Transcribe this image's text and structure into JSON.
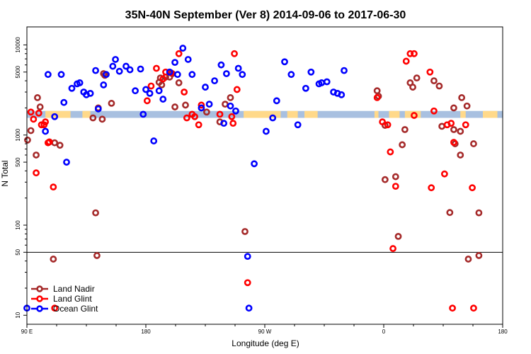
{
  "chart_data": {
    "type": "scatter",
    "title": "35N-40N September (Ver 8)   2014-09-06 to 2017-06-30",
    "xlabel": "Longitude (deg E)",
    "ylabel": "N Total",
    "xlim": [
      90,
      450
    ],
    "ylog": true,
    "ylim_log10": [
      0.9,
      4.2
    ],
    "x_ticks": [
      {
        "value": 90,
        "label": "90 E"
      },
      {
        "value": 180,
        "label": "180"
      },
      {
        "value": 270,
        "label": "90 W"
      },
      {
        "value": 360,
        "label": "0"
      },
      {
        "value": 450,
        "label": "180"
      }
    ],
    "x_minor_ticks": [
      112.5,
      135,
      157.5,
      202.5,
      225,
      247.5,
      292.5,
      315,
      337.5,
      382.5,
      405,
      427.5
    ],
    "y_ticks": [
      {
        "value": 10,
        "label": "10"
      },
      {
        "value": 50,
        "label": "50"
      },
      {
        "value": 100,
        "label": "100"
      },
      {
        "value": 500,
        "label": "500"
      },
      {
        "value": 1000,
        "label": "1000"
      },
      {
        "value": 5000,
        "label": "5000"
      },
      {
        "value": 10000,
        "label": "10000"
      }
    ],
    "hline": 50,
    "land_band": {
      "y_low": 1550,
      "y_high": 1850,
      "ocean_color": "#A8C0E0",
      "land_color": "#FFD98A",
      "land_ranges": [
        [
          104,
          123
        ],
        [
          132,
          138
        ],
        [
          254,
          282
        ],
        [
          287,
          295
        ],
        [
          300,
          310
        ],
        [
          353,
          356
        ],
        [
          364,
          372
        ],
        [
          376,
          388
        ],
        [
          418,
          422
        ],
        [
          435,
          446
        ]
      ]
    },
    "legend_position": "bottom-left",
    "series": [
      {
        "name": "Land Nadir",
        "color": "#A52A2A",
        "points": [
          [
            90.5,
            880
          ],
          [
            93,
            1120
          ],
          [
            97,
            600
          ],
          [
            98,
            2600
          ],
          [
            100,
            2050
          ],
          [
            110,
            42
          ],
          [
            111,
            820
          ],
          [
            115,
            770
          ],
          [
            140,
            1550
          ],
          [
            142,
            137
          ],
          [
            143,
            46
          ],
          [
            144,
            2000
          ],
          [
            147,
            1500
          ],
          [
            148,
            4800
          ],
          [
            149,
            4600
          ],
          [
            154,
            2250
          ],
          [
            191,
            4300
          ],
          [
            195,
            4400
          ],
          [
            198,
            4400
          ],
          [
            192,
            3600
          ],
          [
            202,
            2050
          ],
          [
            190,
            3850
          ],
          [
            200,
            4800
          ],
          [
            205,
            3800
          ],
          [
            210,
            2150
          ],
          [
            226,
            1800
          ],
          [
            236,
            1400
          ],
          [
            240,
            2200
          ],
          [
            244,
            2600
          ],
          [
            255,
            85
          ],
          [
            355,
            3100
          ],
          [
            356,
            2700
          ],
          [
            361,
            1280
          ],
          [
            361,
            320
          ],
          [
            369,
            345
          ],
          [
            371,
            75
          ],
          [
            374,
            780
          ],
          [
            376,
            1150
          ],
          [
            380,
            3800
          ],
          [
            382,
            3400
          ],
          [
            385,
            4300
          ],
          [
            398,
            4000
          ],
          [
            402,
            3500
          ],
          [
            404,
            1250
          ],
          [
            410,
            138
          ],
          [
            413,
            2000
          ],
          [
            413,
            1150
          ],
          [
            414,
            800
          ],
          [
            418,
            1100
          ],
          [
            418,
            600
          ],
          [
            419,
            2600
          ],
          [
            423,
            2100
          ],
          [
            424,
            42
          ],
          [
            428,
            800
          ],
          [
            432,
            137
          ],
          [
            432,
            46
          ]
        ]
      },
      {
        "name": "Land Glint",
        "color": "#FF0000",
        "points": [
          [
            93,
            1800
          ],
          [
            95,
            1500
          ],
          [
            97,
            380
          ],
          [
            99,
            1750
          ],
          [
            101,
            1300
          ],
          [
            104,
            1400
          ],
          [
            103,
            1300
          ],
          [
            106,
            820
          ],
          [
            107,
            840
          ],
          [
            110,
            265
          ],
          [
            111,
            12
          ],
          [
            181,
            2400
          ],
          [
            184,
            3500
          ],
          [
            188,
            5500
          ],
          [
            193,
            4200
          ],
          [
            195,
            5000
          ],
          [
            199,
            4900
          ],
          [
            205,
            8000
          ],
          [
            209,
            3000
          ],
          [
            211,
            1550
          ],
          [
            215,
            1700
          ],
          [
            217,
            1600
          ],
          [
            220,
            1300
          ],
          [
            222,
            2150
          ],
          [
            236,
            1700
          ],
          [
            245,
            1600
          ],
          [
            246,
            1350
          ],
          [
            247,
            8000
          ],
          [
            249,
            3200
          ],
          [
            257,
            23
          ],
          [
            355,
            2600
          ],
          [
            359,
            1400
          ],
          [
            363,
            1300
          ],
          [
            365,
            650
          ],
          [
            367,
            55
          ],
          [
            369,
            270
          ],
          [
            377,
            6600
          ],
          [
            380,
            8000
          ],
          [
            383,
            1650
          ],
          [
            383,
            8000
          ],
          [
            395,
            5000
          ],
          [
            396,
            260
          ],
          [
            398,
            1850
          ],
          [
            406,
            370
          ],
          [
            408,
            1300
          ],
          [
            411,
            1350
          ],
          [
            412,
            12
          ],
          [
            413,
            830
          ],
          [
            422,
            1300
          ],
          [
            427,
            260
          ],
          [
            428,
            12
          ]
        ]
      },
      {
        "name": "Ocean Glint",
        "color": "#0000FF",
        "points": [
          [
            90,
            12
          ],
          [
            104,
            1100
          ],
          [
            106,
            4700
          ],
          [
            111,
            1600
          ],
          [
            116,
            4700
          ],
          [
            118,
            2300
          ],
          [
            120,
            500
          ],
          [
            124,
            3300
          ],
          [
            128,
            3700
          ],
          [
            130,
            3800
          ],
          [
            133,
            3000
          ],
          [
            135,
            2800
          ],
          [
            138,
            2900
          ],
          [
            142,
            5200
          ],
          [
            144,
            1950
          ],
          [
            148,
            3600
          ],
          [
            150,
            4700
          ],
          [
            155,
            5800
          ],
          [
            157,
            6900
          ],
          [
            160,
            5100
          ],
          [
            165,
            5800
          ],
          [
            168,
            5300
          ],
          [
            172,
            3100
          ],
          [
            176,
            5400
          ],
          [
            178,
            1700
          ],
          [
            180,
            3200
          ],
          [
            183,
            2900
          ],
          [
            186,
            860
          ],
          [
            190,
            3100
          ],
          [
            193,
            2500
          ],
          [
            198,
            5000
          ],
          [
            202,
            6400
          ],
          [
            204,
            4700
          ],
          [
            208,
            9200
          ],
          [
            212,
            6900
          ],
          [
            215,
            4700
          ],
          [
            222,
            2000
          ],
          [
            225,
            3400
          ],
          [
            228,
            2200
          ],
          [
            232,
            4000
          ],
          [
            237,
            6000
          ],
          [
            239,
            1350
          ],
          [
            241,
            4800
          ],
          [
            244,
            2100
          ],
          [
            248,
            1850
          ],
          [
            250,
            5500
          ],
          [
            253,
            4700
          ],
          [
            257,
            45
          ],
          [
            258,
            12
          ],
          [
            262,
            480
          ],
          [
            271,
            1100
          ],
          [
            276,
            1550
          ],
          [
            279,
            2400
          ],
          [
            285,
            6500
          ],
          [
            290,
            4700
          ],
          [
            295,
            1300
          ],
          [
            301,
            3300
          ],
          [
            305,
            5000
          ],
          [
            311,
            3700
          ],
          [
            313,
            3800
          ],
          [
            317,
            3900
          ],
          [
            322,
            3000
          ],
          [
            325,
            2900
          ],
          [
            328,
            2800
          ],
          [
            330,
            5200
          ]
        ]
      }
    ]
  }
}
